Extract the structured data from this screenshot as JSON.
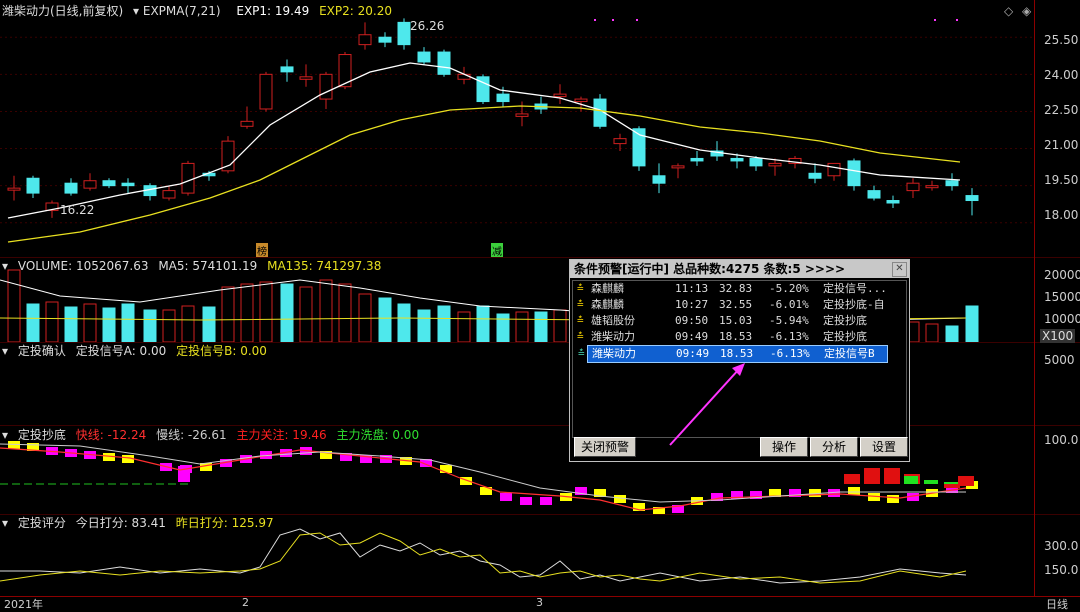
{
  "main": {
    "stock_label": "潍柴动力(日线,前复权)",
    "indicator": "EXPMA(7,21)",
    "exp1": "EXP1: 19.49",
    "exp2": "EXP2: 20.20",
    "high_label": "26.26",
    "low_label": "16.22",
    "marker_bang": "榜",
    "marker_jian": "减",
    "y_ticks": [
      "25.50",
      "24.00",
      "22.50",
      "21.00",
      "19.50",
      "18.00"
    ]
  },
  "volume": {
    "label": "VOLUME: 1052067.63",
    "ma5": "MA5: 574101.19",
    "ma135": "MA135: 741297.38",
    "y_ticks": [
      "20000",
      "15000",
      "10000",
      "5000"
    ],
    "unit": "X100"
  },
  "confirm": {
    "name": "定投确认",
    "signal_a": "定投信号A: 0.00",
    "signal_b": "定投信号B: 0.00"
  },
  "bottom_pick": {
    "name": "定投抄底",
    "fast": "快线: -12.24",
    "slow": "慢线: -26.61",
    "attention": "主力关注: 19.46",
    "wash": "主力洗盘: 0.00",
    "y_tick": "100.0"
  },
  "score": {
    "name": "定投评分",
    "today": "今日打分: 83.41",
    "yesterday": "昨日打分: 125.97",
    "y_ticks": [
      "300.0",
      "150.0"
    ]
  },
  "dates": [
    "2021年",
    "2",
    "3"
  ],
  "period": "日线",
  "alert": {
    "title": "条件预警[运行中] 总品种数:4275 条数:5  >>>>",
    "rows": [
      {
        "name": "森麒麟",
        "time": "11:13",
        "price": "32.83",
        "pct": "-5.20%",
        "type": "定投信号..."
      },
      {
        "name": "森麒麟",
        "time": "10:27",
        "price": "32.55",
        "pct": "-6.01%",
        "type": "定投抄底-自"
      },
      {
        "name": "雄韬股份",
        "time": "09:50",
        "price": "15.03",
        "pct": "-5.94%",
        "type": "定投抄底"
      },
      {
        "name": "潍柴动力",
        "time": "09:49",
        "price": "18.53",
        "pct": "-6.13%",
        "type": "定投抄底"
      },
      {
        "name": "潍柴动力",
        "time": "09:49",
        "price": "18.53",
        "pct": "-6.13%",
        "type": "定投信号B"
      }
    ],
    "btn_close": "关闭预警",
    "btn_op": "操作",
    "btn_analyze": "分析",
    "btn_settings": "设置"
  },
  "colors": {
    "up": "#d02020",
    "down": "#4ee8ec",
    "exp1": "#ffffff",
    "exp2": "#e8e020",
    "magenta": "#ff00ff",
    "yellow": "#ffff00",
    "selection": "#1060d0"
  }
}
